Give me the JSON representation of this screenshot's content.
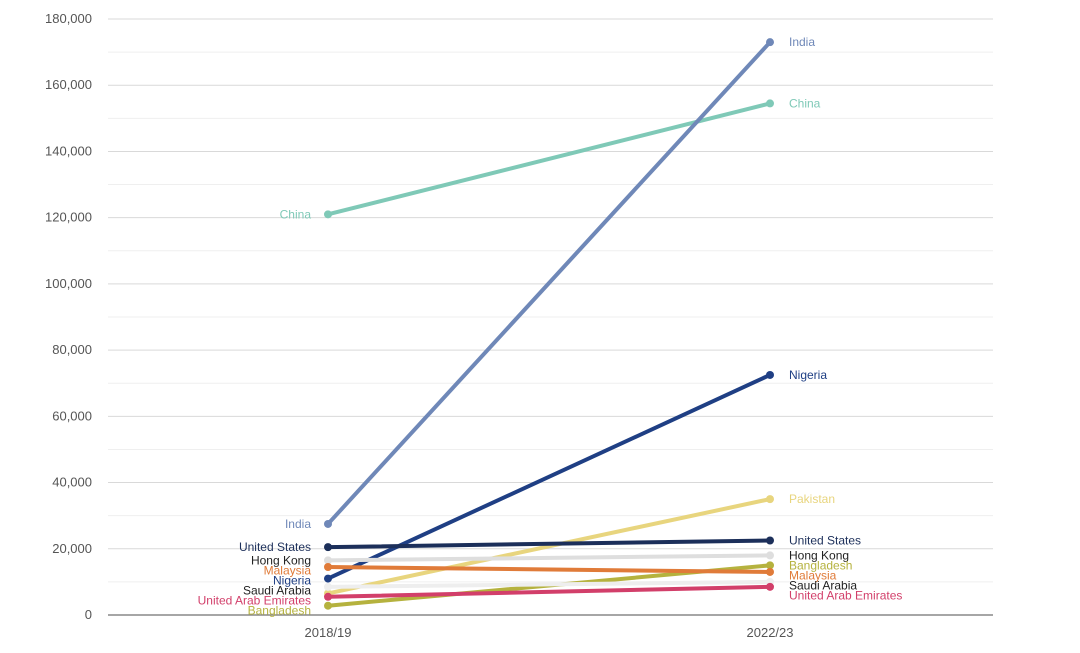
{
  "chart_data": {
    "type": "line",
    "title": "",
    "xlabel": "",
    "ylabel": "",
    "categories": [
      "2018/19",
      "2022/23"
    ],
    "ylim": [
      0,
      180000
    ],
    "yticks": [
      0,
      20000,
      40000,
      60000,
      80000,
      100000,
      120000,
      140000,
      160000,
      180000
    ],
    "ytick_labels": [
      "0",
      "20,000",
      "40,000",
      "60,000",
      "80,000",
      "100,000",
      "120,000",
      "140,000",
      "160,000",
      "180,000"
    ],
    "grid": true,
    "series": [
      {
        "name": "China",
        "color": "#7fc9b7",
        "values": [
          121000,
          154500
        ],
        "label_left": true,
        "label_right": true
      },
      {
        "name": "India",
        "color": "#6f88b8",
        "values": [
          27500,
          173000
        ],
        "label_left": true,
        "label_right": true
      },
      {
        "name": "Nigeria",
        "color": "#1f3f84",
        "values": [
          11000,
          72500
        ],
        "label_left": true,
        "label_right": true
      },
      {
        "name": "Pakistan",
        "color": "#e8d57e",
        "values": [
          6500,
          35000
        ],
        "label_left": false,
        "label_right": true
      },
      {
        "name": "United States",
        "color": "#1c2f5a",
        "values": [
          20500,
          22500
        ],
        "label_left": true,
        "label_right": true
      },
      {
        "name": "Hong Kong",
        "color": "#dedede",
        "values": [
          16500,
          18000
        ],
        "label_left": true,
        "label_right": true
      },
      {
        "name": "Bangladesh",
        "color": "#b5b23e",
        "values": [
          2800,
          15000
        ],
        "label_left": true,
        "label_right": true
      },
      {
        "name": "Malaysia",
        "color": "#e07b39",
        "values": [
          14500,
          13000
        ],
        "label_left": true,
        "label_right": true
      },
      {
        "name": "Saudi Arabia",
        "color": "#eeeeee",
        "values": [
          8500,
          10000
        ],
        "label_left": true,
        "label_right": true
      },
      {
        "name": "United Arab Emirates",
        "color": "#d23f6a",
        "values": [
          5500,
          8500
        ],
        "label_left": true,
        "label_right": true
      }
    ]
  }
}
